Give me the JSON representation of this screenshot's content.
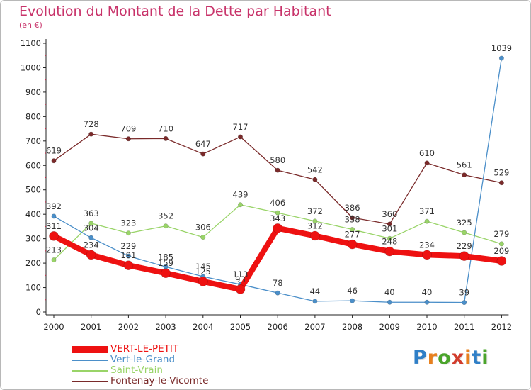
{
  "chart_title": "Evolution du Montant de la Dette par Habitant",
  "chart_subtitle": "(en €)",
  "logo_text": "Proxiti",
  "logo_colors": [
    "#2f7fc7",
    "#e8801e",
    "#4aa42a",
    "#d23c2c",
    "#e8801e",
    "#2f7fc7",
    "#4aa42a"
  ],
  "chart_data": {
    "type": "line",
    "title": "Evolution du Montant de la Dette par Habitant",
    "subtitle": "(en €)",
    "categories": [
      "2000",
      "2001",
      "2002",
      "2003",
      "2004",
      "2005",
      "2006",
      "2007",
      "2008",
      "2009",
      "2010",
      "2011",
      "2012"
    ],
    "ylim": [
      0,
      1100
    ],
    "yticks": [
      "0",
      "100",
      "200",
      "300",
      "400",
      "500",
      "600",
      "700",
      "800",
      "900",
      "1000",
      "1100"
    ],
    "grid": false,
    "legend_position": "bottom-left",
    "series": [
      {
        "name": "VERT-LE-PETIT",
        "color": "#ee1111",
        "values": [
          311,
          234,
          191,
          159,
          125,
          93,
          343,
          312,
          277,
          248,
          234,
          229,
          209
        ],
        "labels": [
          "311",
          "234",
          "191",
          "159",
          "125",
          "93",
          "343",
          "312",
          "277",
          "248",
          "234",
          "229",
          "209"
        ]
      },
      {
        "name": "Vert-le-Grand",
        "color": "#4b8fc9",
        "values": [
          392,
          304,
          229,
          185,
          145,
          113,
          78,
          44,
          46,
          40,
          40,
          39,
          1039
        ],
        "labels": [
          "392",
          "304",
          "229",
          "185",
          "145",
          "113",
          "78",
          "44",
          "46",
          "40",
          "40",
          "39",
          "1039"
        ]
      },
      {
        "name": "Saint-Vrain",
        "color": "#99d468",
        "values": [
          213,
          363,
          323,
          352,
          306,
          439,
          406,
          372,
          338,
          301,
          371,
          325,
          279
        ],
        "labels": [
          "213",
          "363",
          "323",
          "352",
          "306",
          "439",
          "406",
          "372",
          "338",
          "301",
          "371",
          "325",
          "279"
        ]
      },
      {
        "name": "Fontenay-le-Vicomte",
        "color": "#7a2a2a",
        "values": [
          619,
          728,
          709,
          710,
          647,
          717,
          580,
          542,
          386,
          360,
          610,
          561,
          529
        ],
        "labels": [
          "619",
          "728",
          "709",
          "710",
          "647",
          "717",
          "580",
          "542",
          "386",
          "360",
          "610",
          "561",
          "529"
        ]
      }
    ]
  }
}
